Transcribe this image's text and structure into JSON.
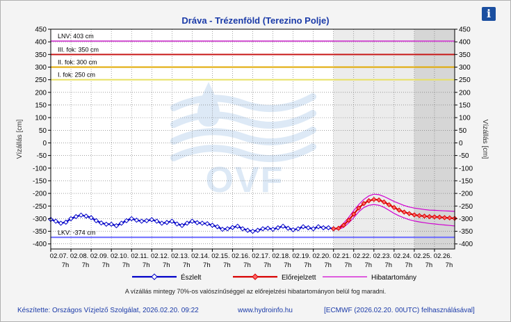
{
  "header": {
    "title": "Dráva - Trézenföld (Terezino Polje)",
    "info_icon": "info-icon"
  },
  "chart_data": {
    "type": "line",
    "title": "Dráva - Trézenföld (Terezino Polje)",
    "ylabel_left": "Vízállás [cm]",
    "ylabel_right": "Vízállás [cm]",
    "ylim": [
      -420,
      450
    ],
    "yticks": [
      450,
      400,
      350,
      300,
      250,
      200,
      150,
      100,
      50,
      0,
      -50,
      -100,
      -150,
      -200,
      -250,
      -300,
      -350,
      -400
    ],
    "xlim": [
      0,
      20
    ],
    "xticks": [
      {
        "date": "02.07.",
        "hour": "7h"
      },
      {
        "date": "02.08.",
        "hour": "7h"
      },
      {
        "date": "02.09.",
        "hour": "7h"
      },
      {
        "date": "02.10.",
        "hour": "7h"
      },
      {
        "date": "02.11.",
        "hour": "7h"
      },
      {
        "date": "02.12.",
        "hour": "7h"
      },
      {
        "date": "02.13.",
        "hour": "7h"
      },
      {
        "date": "02.14.",
        "hour": "7h"
      },
      {
        "date": "02.15.",
        "hour": "7h"
      },
      {
        "date": "02.16.",
        "hour": "7h"
      },
      {
        "date": "02.17.",
        "hour": "7h"
      },
      {
        "date": "02.18.",
        "hour": "7h"
      },
      {
        "date": "02.19.",
        "hour": "7h"
      },
      {
        "date": "02.20.",
        "hour": "7h"
      },
      {
        "date": "02.21.",
        "hour": "7h"
      },
      {
        "date": "02.22.",
        "hour": "7h"
      },
      {
        "date": "02.23.",
        "hour": "7h"
      },
      {
        "date": "02.24.",
        "hour": "7h"
      },
      {
        "date": "02.25.",
        "hour": "7h"
      },
      {
        "date": "02.26.",
        "hour": "7h"
      }
    ],
    "grid": true,
    "forecast_start_x": 14,
    "late_forecast_x": 18,
    "levels": [
      {
        "label": "LNV: 403 cm",
        "value": 403,
        "color": "#d24fd2"
      },
      {
        "label": "III. fok: 350 cm",
        "value": 350,
        "color": "#c81818"
      },
      {
        "label": "II. fok: 300 cm",
        "value": 300,
        "color": "#e0a800"
      },
      {
        "label": "I. fok: 250 cm",
        "value": 250,
        "color": "#e8e060"
      },
      {
        "label": "LKV: -374 cm",
        "value": -374,
        "color": "#6a6aff"
      }
    ],
    "series": [
      {
        "name": "Észlelt",
        "color": "#0000c8",
        "x": [
          0,
          0.25,
          0.5,
          0.75,
          1,
          1.25,
          1.5,
          1.75,
          2,
          2.25,
          2.5,
          2.75,
          3,
          3.25,
          3.5,
          3.75,
          4,
          4.25,
          4.5,
          4.75,
          5,
          5.25,
          5.5,
          5.75,
          6,
          6.25,
          6.5,
          6.75,
          7,
          7.25,
          7.5,
          7.75,
          8,
          8.25,
          8.5,
          8.75,
          9,
          9.25,
          9.5,
          9.75,
          10,
          10.25,
          10.5,
          10.75,
          11,
          11.25,
          11.5,
          11.75,
          12,
          12.25,
          12.5,
          12.75,
          13,
          13.25,
          13.5,
          13.75,
          14
        ],
        "y": [
          -303,
          -310,
          -318,
          -314,
          -300,
          -292,
          -286,
          -290,
          -296,
          -308,
          -317,
          -322,
          -322,
          -328,
          -318,
          -308,
          -300,
          -306,
          -310,
          -308,
          -304,
          -310,
          -318,
          -315,
          -310,
          -321,
          -327,
          -318,
          -310,
          -316,
          -318,
          -320,
          -326,
          -332,
          -342,
          -340,
          -335,
          -330,
          -340,
          -346,
          -350,
          -346,
          -340,
          -338,
          -342,
          -336,
          -330,
          -338,
          -344,
          -340,
          -332,
          -336,
          -340,
          -332,
          -336,
          -336,
          -340
        ]
      },
      {
        "name": "Előrejelzett",
        "color": "#d80000",
        "x": [
          14,
          14.25,
          14.5,
          14.75,
          15,
          15.25,
          15.5,
          15.75,
          16,
          16.25,
          16.5,
          16.75,
          17,
          17.25,
          17.5,
          17.75,
          18,
          18.25,
          18.5,
          18.75,
          19,
          19.25,
          19.5,
          19.75,
          20
        ],
        "y": [
          -340,
          -338,
          -326,
          -306,
          -282,
          -258,
          -240,
          -229,
          -224,
          -226,
          -234,
          -245,
          -256,
          -266,
          -274,
          -280,
          -285,
          -288,
          -290,
          -292,
          -293,
          -294,
          -296,
          -297,
          -299
        ]
      },
      {
        "name": "Hibatartomány",
        "color": "#d000d0",
        "x": [
          14,
          14.25,
          14.5,
          14.75,
          15,
          15.25,
          15.5,
          15.75,
          16,
          16.25,
          16.5,
          16.75,
          17,
          17.25,
          17.5,
          17.75,
          18,
          18.25,
          18.5,
          18.75,
          19,
          19.25,
          19.5,
          19.75,
          20
        ],
        "upper": [
          -340,
          -336,
          -318,
          -295,
          -268,
          -244,
          -224,
          -210,
          -203,
          -205,
          -212,
          -222,
          -232,
          -240,
          -248,
          -254,
          -258,
          -261,
          -264,
          -266,
          -267,
          -268,
          -269,
          -270,
          -271
        ],
        "lower": [
          -340,
          -342,
          -334,
          -317,
          -296,
          -273,
          -256,
          -247,
          -244,
          -247,
          -255,
          -267,
          -279,
          -289,
          -297,
          -304,
          -309,
          -313,
          -316,
          -319,
          -321,
          -323,
          -325,
          -327,
          -329
        ]
      }
    ],
    "watermark": "OVF"
  },
  "legend": {
    "observed": "Észlelt",
    "forecast": "Előrejelzett",
    "error_band": "Hibatartomány"
  },
  "note": "A vízállás mintegy 70%-os valószínűséggel az előrejelzési hibatartományon belül fog maradni.",
  "footer": {
    "author": "Készítette: Országos Vízjelző Szolgálat, 2026.02.20. 09:22",
    "website": "www.hydroinfo.hu",
    "source": "[ECMWF (2026.02.20. 00UTC) felhasználásával]"
  }
}
